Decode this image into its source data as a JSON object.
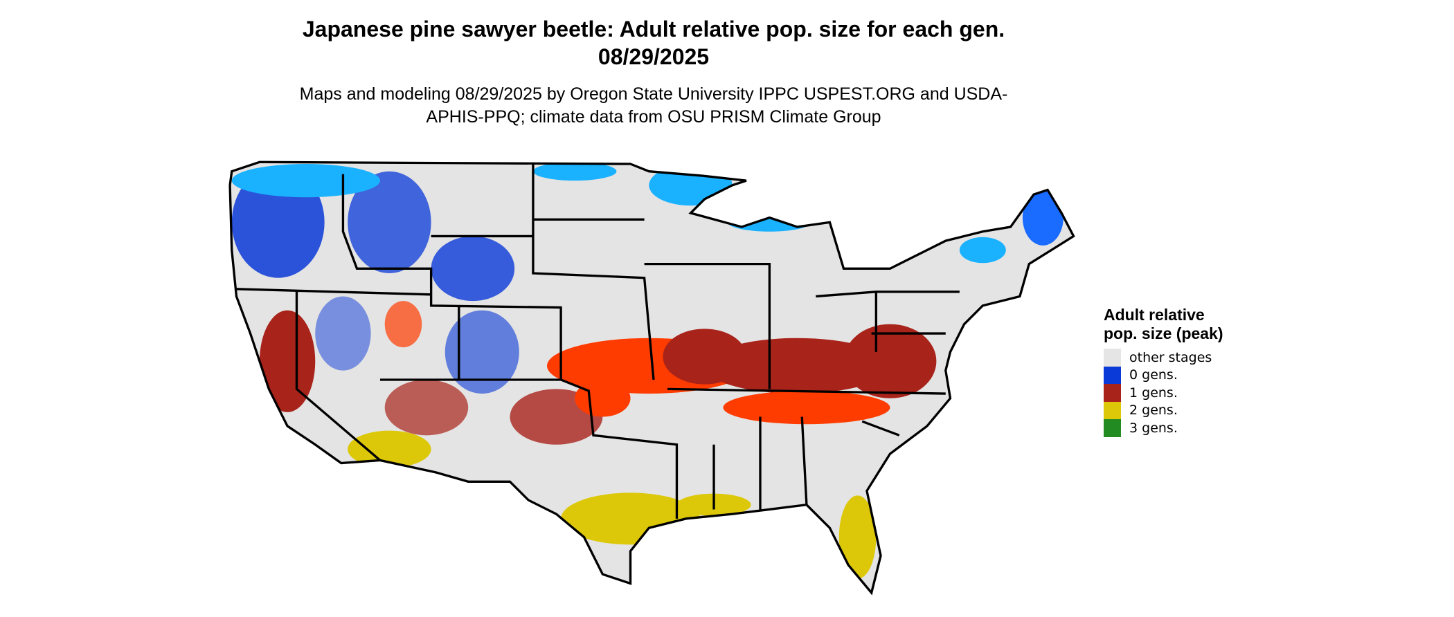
{
  "title": "Japanese pine sawyer beetle: Adult relative pop. size for each gen. 08/29/2025",
  "subtitle": "Maps and modeling 08/29/2025 by Oregon State University IPPC USPEST.ORG and USDA-APHIS-PPQ; climate data from OSU PRISM Climate Group",
  "legend": {
    "title": "Adult relative pop. size (peak)",
    "entries": [
      {
        "label": "other stages",
        "color": "#e5e5e5"
      },
      {
        "label": "0 gens.",
        "color": "#0a3ad8"
      },
      {
        "label": "1 gens.",
        "color": "#a8231a"
      },
      {
        "label": "2 gens.",
        "color": "#dcc808"
      },
      {
        "label": "3 gens.",
        "color": "#228b22"
      }
    ]
  }
}
